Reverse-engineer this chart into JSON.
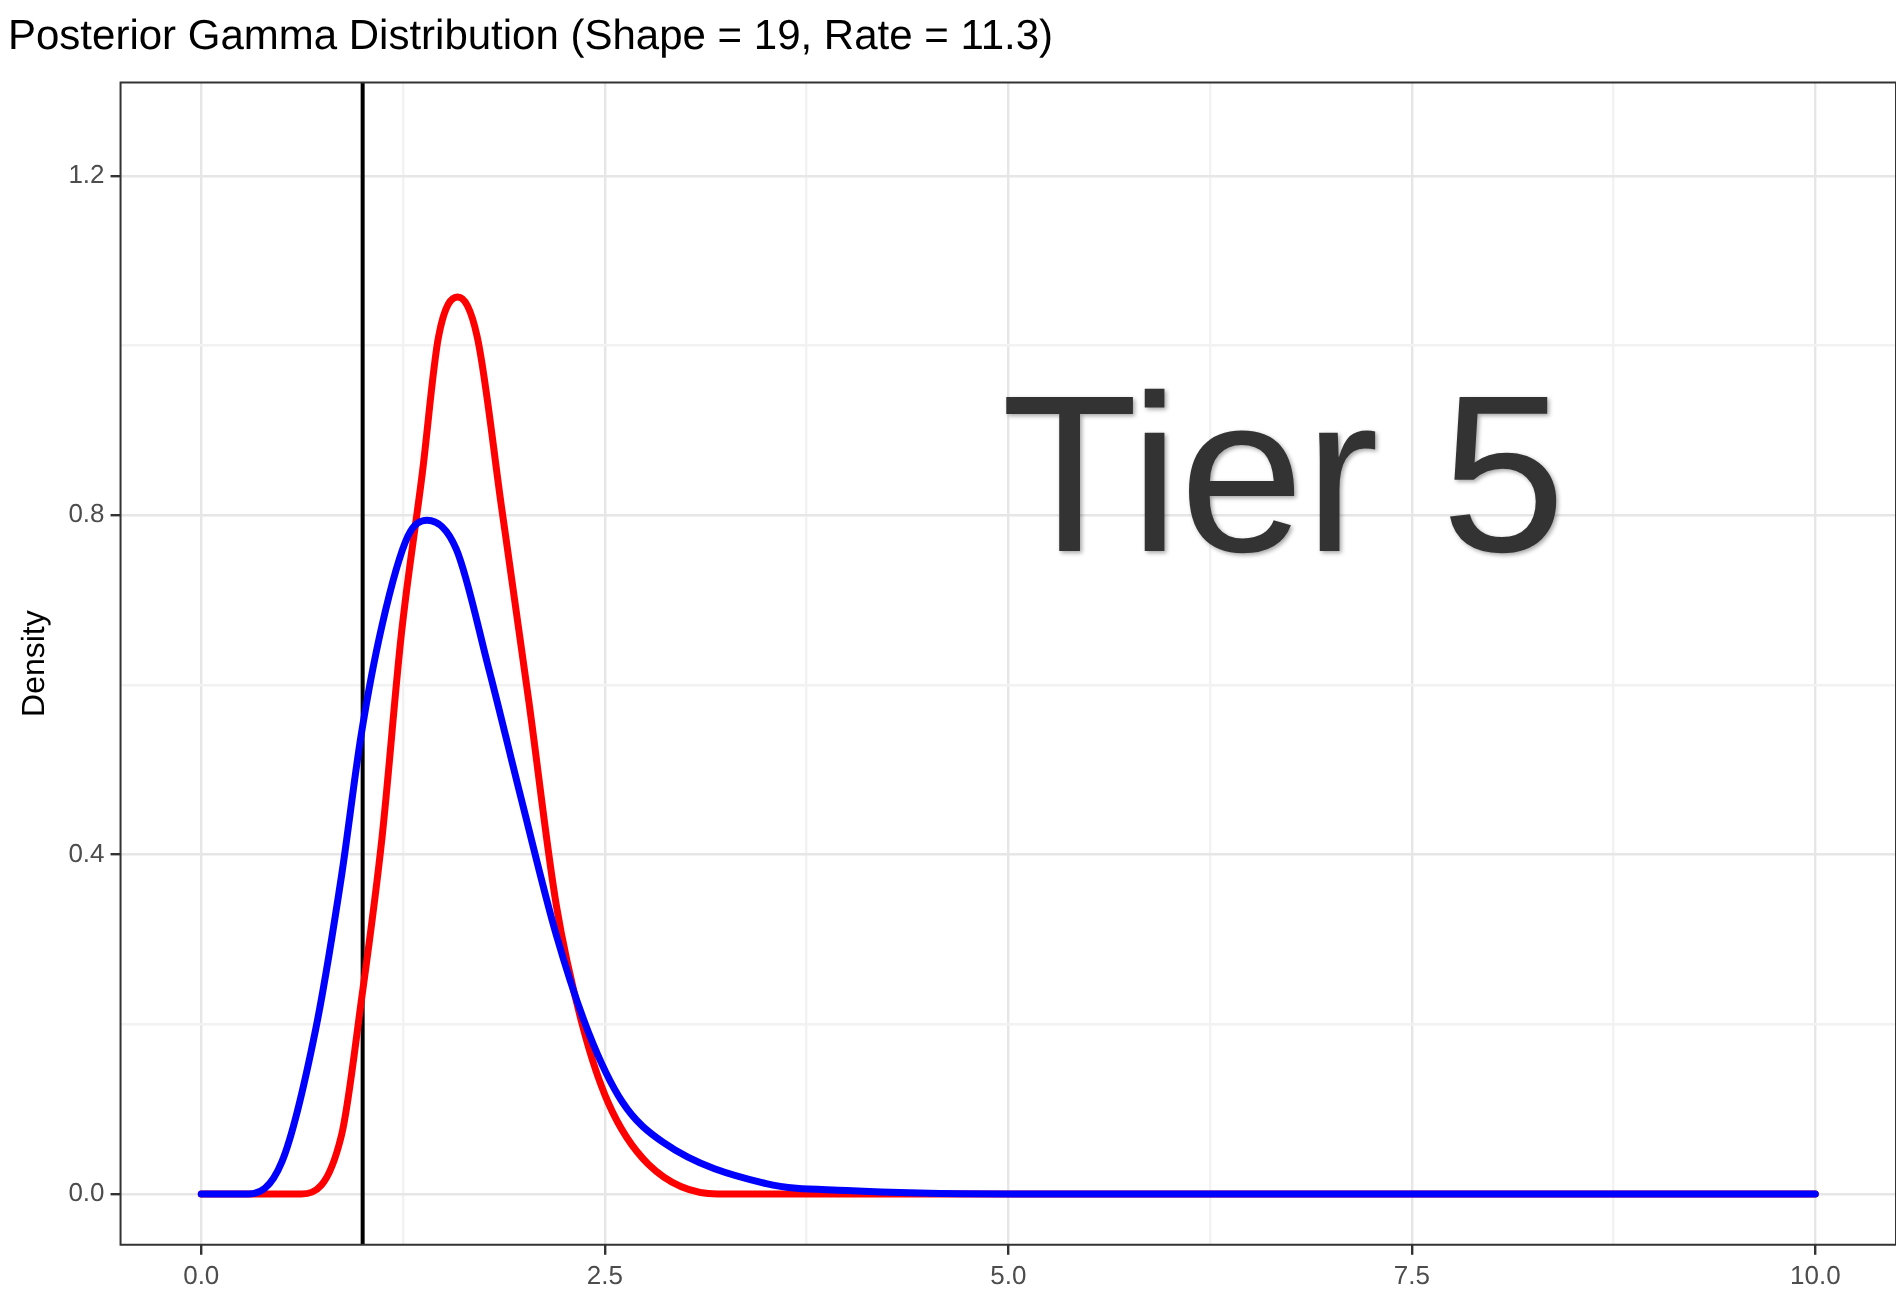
{
  "chart_data": {
    "type": "line",
    "title": "Posterior Gamma Distribution (Shape = 19, Rate = 11.3)",
    "ylabel": "Density",
    "annotations": [
      "Tier 5"
    ],
    "xlim": [
      -0.5,
      10.5
    ],
    "ylim": [
      -0.06,
      1.31
    ],
    "xticks": [
      {
        "value": 0,
        "label": "0.0"
      },
      {
        "value": 1.25,
        "label": null
      },
      {
        "value": 2.5,
        "label": "2.5"
      },
      {
        "value": 3.75,
        "label": null
      },
      {
        "value": 5,
        "label": "5.0"
      },
      {
        "value": 6.25,
        "label": null
      },
      {
        "value": 7.5,
        "label": "7.5"
      },
      {
        "value": 8.75,
        "label": null
      },
      {
        "value": 10,
        "label": "10.0"
      }
    ],
    "yticks": [
      {
        "value": 0,
        "label": "0.0"
      },
      {
        "value": 0.2,
        "label": null
      },
      {
        "value": 0.4,
        "label": "0.4"
      },
      {
        "value": 0.6,
        "label": null
      },
      {
        "value": 0.8,
        "label": "0.8"
      },
      {
        "value": 1.0,
        "label": null
      },
      {
        "value": 1.2,
        "label": "1.2"
      }
    ],
    "grid": true,
    "legend": false,
    "marker": "none",
    "line_style": "solid",
    "ref_lines": [
      {
        "axis": "x",
        "value": 1,
        "color": "#000000"
      }
    ],
    "series": [
      {
        "color": "#0000ff",
        "x": [
          0,
          0.29,
          0.5,
          0.71,
          0.87,
          0.99,
          1.12,
          1.28,
          1.4,
          1.58,
          1.78,
          1.99,
          2.2,
          2.4,
          2.61,
          2.86,
          3.5,
          4,
          5,
          10
        ],
        "values": [
          0,
          0,
          0.038,
          0.195,
          0.376,
          0.54,
          0.67,
          0.775,
          0.794,
          0.76,
          0.62,
          0.46,
          0.305,
          0.19,
          0.108,
          0.061,
          0.012,
          0.004,
          0,
          0
        ]
      },
      {
        "color": "#ff0000",
        "x": [
          0,
          0.62,
          0.87,
          0.99,
          1.12,
          1.24,
          1.37,
          1.47,
          1.59,
          1.71,
          1.86,
          2.03,
          2.2,
          2.36,
          2.52,
          2.77,
          3.2,
          10
        ],
        "values": [
          0,
          0,
          0.07,
          0.225,
          0.42,
          0.66,
          0.85,
          1.01,
          1.057,
          1.01,
          0.81,
          0.58,
          0.34,
          0.2,
          0.108,
          0.035,
          0,
          0
        ]
      }
    ]
  }
}
